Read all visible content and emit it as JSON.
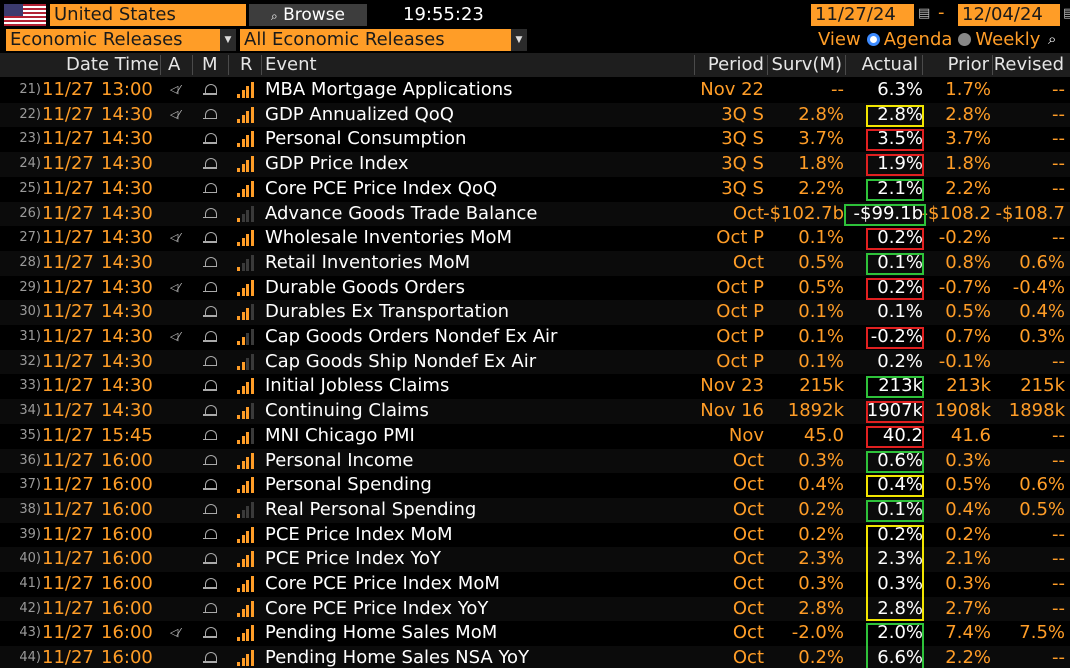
{
  "top": {
    "country": "United States",
    "browse_label": "Browse",
    "clock": "19:55:23",
    "date_from": "11/27/24",
    "date_to": "12/04/24",
    "category": "Economic Releases",
    "subcategory": "All Economic Releases",
    "view_label": "View",
    "agenda_label": "Agenda",
    "weekly_label": "Weekly"
  },
  "columns": {
    "datetime": "Date Time",
    "a": "A",
    "m": "M",
    "r": "R",
    "event": "Event",
    "period": "Period",
    "surv": "Surv(M)",
    "actual": "Actual",
    "prior": "Prior",
    "revised": "Revised"
  },
  "colors": {
    "accent_orange": "#ff9d27",
    "highlight_green": "#2ec23a",
    "highlight_red": "#e02020",
    "highlight_yellow": "#f2e500"
  },
  "rows": [
    {
      "idx": "21)",
      "date": "11/27",
      "time": "13:00",
      "alert": true,
      "rel": 4,
      "event": "MBA Mortgage Applications",
      "period": "Nov 22",
      "surv": "--",
      "actual": "6.3%",
      "prior": "1.7%",
      "revised": "--",
      "hl": ""
    },
    {
      "idx": "22)",
      "date": "11/27",
      "time": "14:30",
      "alert": true,
      "rel": 4,
      "event": "GDP Annualized QoQ",
      "period": "3Q S",
      "surv": "2.8%",
      "actual": "2.8%",
      "prior": "2.8%",
      "revised": "--",
      "hl": "yellow"
    },
    {
      "idx": "23)",
      "date": "11/27",
      "time": "14:30",
      "alert": false,
      "rel": 4,
      "event": "Personal Consumption",
      "period": "3Q S",
      "surv": "3.7%",
      "actual": "3.5%",
      "prior": "3.7%",
      "revised": "--",
      "hl": "red"
    },
    {
      "idx": "24)",
      "date": "11/27",
      "time": "14:30",
      "alert": false,
      "rel": 4,
      "event": "GDP Price Index",
      "period": "3Q S",
      "surv": "1.8%",
      "actual": "1.9%",
      "prior": "1.8%",
      "revised": "--",
      "hl": "red"
    },
    {
      "idx": "25)",
      "date": "11/27",
      "time": "14:30",
      "alert": false,
      "rel": 4,
      "event": "Core PCE Price Index QoQ",
      "period": "3Q S",
      "surv": "2.2%",
      "actual": "2.1%",
      "prior": "2.2%",
      "revised": "--",
      "hl": "green"
    },
    {
      "idx": "26)",
      "date": "11/27",
      "time": "14:30",
      "alert": false,
      "rel": 1,
      "event": "Advance Goods Trade Balance",
      "period": "Oct",
      "surv": "-$102.7b",
      "actual": "-$99.1b",
      "prior": "-$108.2",
      "revised": "-$108.7",
      "hl": "green"
    },
    {
      "idx": "27)",
      "date": "11/27",
      "time": "14:30",
      "alert": true,
      "rel": 4,
      "event": "Wholesale Inventories MoM",
      "period": "Oct P",
      "surv": "0.1%",
      "actual": "0.2%",
      "prior": "-0.2%",
      "revised": "--",
      "hl": "red"
    },
    {
      "idx": "28)",
      "date": "11/27",
      "time": "14:30",
      "alert": false,
      "rel": 1,
      "event": "Retail Inventories MoM",
      "period": "Oct",
      "surv": "0.5%",
      "actual": "0.1%",
      "prior": "0.8%",
      "revised": "0.6%",
      "hl": "green"
    },
    {
      "idx": "29)",
      "date": "11/27",
      "time": "14:30",
      "alert": true,
      "rel": 4,
      "event": "Durable Goods Orders",
      "period": "Oct P",
      "surv": "0.5%",
      "actual": "0.2%",
      "prior": "-0.7%",
      "revised": "-0.4%",
      "hl": "red"
    },
    {
      "idx": "30)",
      "date": "11/27",
      "time": "14:30",
      "alert": false,
      "rel": 3,
      "event": "Durables Ex Transportation",
      "period": "Oct P",
      "surv": "0.1%",
      "actual": "0.1%",
      "prior": "0.5%",
      "revised": "0.4%",
      "hl": ""
    },
    {
      "idx": "31)",
      "date": "11/27",
      "time": "14:30",
      "alert": true,
      "rel": 2,
      "event": "Cap Goods Orders Nondef Ex Air",
      "period": "Oct P",
      "surv": "0.1%",
      "actual": "-0.2%",
      "prior": "0.7%",
      "revised": "0.3%",
      "hl": "red"
    },
    {
      "idx": "32)",
      "date": "11/27",
      "time": "14:30",
      "alert": false,
      "rel": 2,
      "event": "Cap Goods Ship Nondef Ex Air",
      "period": "Oct P",
      "surv": "0.1%",
      "actual": "0.2%",
      "prior": "-0.1%",
      "revised": "--",
      "hl": ""
    },
    {
      "idx": "33)",
      "date": "11/27",
      "time": "14:30",
      "alert": false,
      "rel": 4,
      "event": "Initial Jobless Claims",
      "period": "Nov 23",
      "surv": "215k",
      "actual": "213k",
      "prior": "213k",
      "revised": "215k",
      "hl": "green"
    },
    {
      "idx": "34)",
      "date": "11/27",
      "time": "14:30",
      "alert": false,
      "rel": 3,
      "event": "Continuing Claims",
      "period": "Nov 16",
      "surv": "1892k",
      "actual": "1907k",
      "prior": "1908k",
      "revised": "1898k",
      "hl": "red"
    },
    {
      "idx": "35)",
      "date": "11/27",
      "time": "15:45",
      "alert": false,
      "rel": 3,
      "event": "MNI Chicago PMI",
      "period": "Nov",
      "surv": "45.0",
      "actual": "40.2",
      "prior": "41.6",
      "revised": "--",
      "hl": "red"
    },
    {
      "idx": "36)",
      "date": "11/27",
      "time": "16:00",
      "alert": false,
      "rel": 4,
      "event": "Personal Income",
      "period": "Oct",
      "surv": "0.3%",
      "actual": "0.6%",
      "prior": "0.3%",
      "revised": "--",
      "hl": "green"
    },
    {
      "idx": "37)",
      "date": "11/27",
      "time": "16:00",
      "alert": false,
      "rel": 4,
      "event": "Personal Spending",
      "period": "Oct",
      "surv": "0.4%",
      "actual": "0.4%",
      "prior": "0.5%",
      "revised": "0.6%",
      "hl": "yellow"
    },
    {
      "idx": "38)",
      "date": "11/27",
      "time": "16:00",
      "alert": false,
      "rel": 1,
      "event": "Real Personal Spending",
      "period": "Oct",
      "surv": "0.2%",
      "actual": "0.1%",
      "prior": "0.4%",
      "revised": "0.5%",
      "hl": "green"
    },
    {
      "idx": "39)",
      "date": "11/27",
      "time": "16:00",
      "alert": false,
      "rel": 4,
      "event": "PCE Price Index MoM",
      "period": "Oct",
      "surv": "0.2%",
      "actual": "0.2%",
      "prior": "0.2%",
      "revised": "--",
      "hl": "ygroup"
    },
    {
      "idx": "40)",
      "date": "11/27",
      "time": "16:00",
      "alert": false,
      "rel": 4,
      "event": "PCE Price Index YoY",
      "period": "Oct",
      "surv": "2.3%",
      "actual": "2.3%",
      "prior": "2.1%",
      "revised": "--",
      "hl": "ygroup"
    },
    {
      "idx": "41)",
      "date": "11/27",
      "time": "16:00",
      "alert": false,
      "rel": 4,
      "event": "Core PCE Price Index MoM",
      "period": "Oct",
      "surv": "0.3%",
      "actual": "0.3%",
      "prior": "0.3%",
      "revised": "--",
      "hl": "ygroup"
    },
    {
      "idx": "42)",
      "date": "11/27",
      "time": "16:00",
      "alert": false,
      "rel": 4,
      "event": "Core PCE Price Index YoY",
      "period": "Oct",
      "surv": "2.8%",
      "actual": "2.8%",
      "prior": "2.7%",
      "revised": "--",
      "hl": "ygroup"
    },
    {
      "idx": "43)",
      "date": "11/27",
      "time": "16:00",
      "alert": true,
      "rel": 4,
      "event": "Pending Home Sales MoM",
      "period": "Oct",
      "surv": "-2.0%",
      "actual": "2.0%",
      "prior": "7.4%",
      "revised": "7.5%",
      "hl": "ggroup"
    },
    {
      "idx": "44)",
      "date": "11/27",
      "time": "16:00",
      "alert": false,
      "rel": 4,
      "event": "Pending Home Sales NSA YoY",
      "period": "Oct",
      "surv": "0.2%",
      "actual": "6.6%",
      "prior": "2.2%",
      "revised": "--",
      "hl": "ggroup"
    }
  ]
}
